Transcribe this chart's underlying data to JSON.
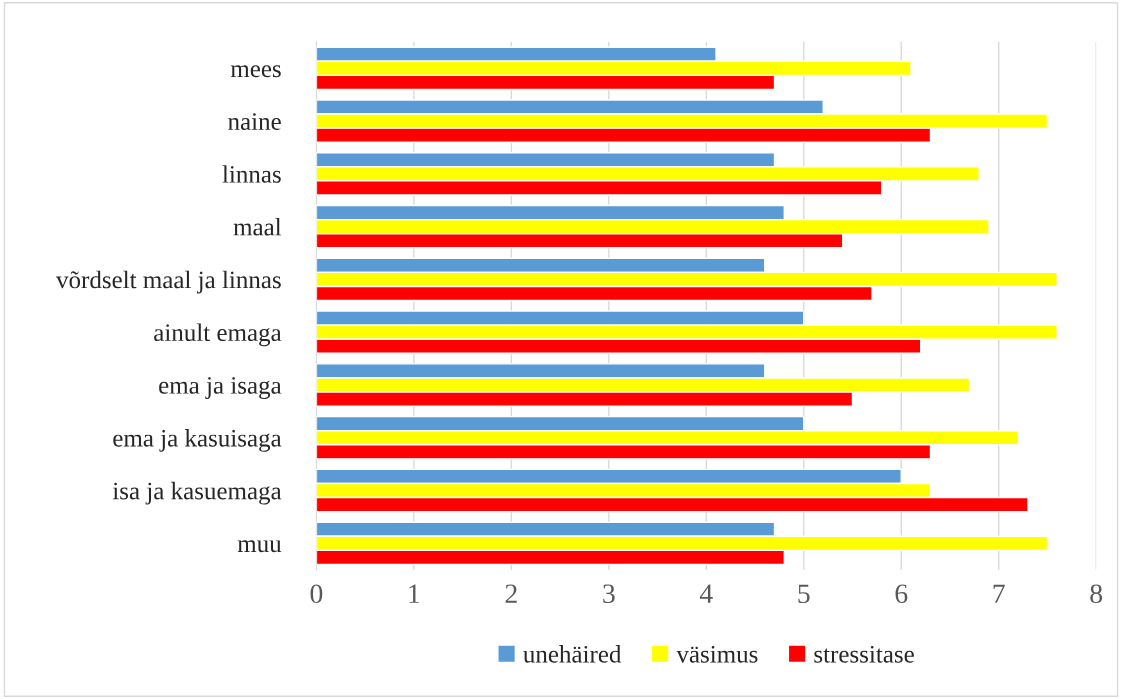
{
  "chart_data": {
    "type": "bar",
    "orientation": "horizontal",
    "categories": [
      "mees",
      "naine",
      "linnas",
      "maal",
      "võrdselt maal ja linnas",
      "ainult emaga",
      "ema ja isaga",
      "ema ja kasuisaga",
      "isa ja kasuemaga",
      "muu"
    ],
    "series": [
      {
        "name": "unehäired",
        "color": "#5b9bd5",
        "values": [
          4.1,
          5.2,
          4.7,
          4.8,
          4.6,
          5.0,
          4.6,
          5.0,
          6.0,
          4.7
        ]
      },
      {
        "name": "väsimus",
        "color": "#ffff00",
        "values": [
          6.1,
          7.5,
          6.8,
          6.9,
          7.6,
          7.6,
          6.7,
          7.2,
          6.3,
          7.5
        ]
      },
      {
        "name": "stressitase",
        "color": "#ff0000",
        "values": [
          4.7,
          6.3,
          5.8,
          5.4,
          5.7,
          6.2,
          5.5,
          6.3,
          7.3,
          4.8
        ]
      }
    ],
    "xlim": [
      0,
      8
    ],
    "xticks": [
      0,
      1,
      2,
      3,
      4,
      5,
      6,
      7,
      8
    ],
    "grid": "x",
    "legend": "bottom"
  }
}
